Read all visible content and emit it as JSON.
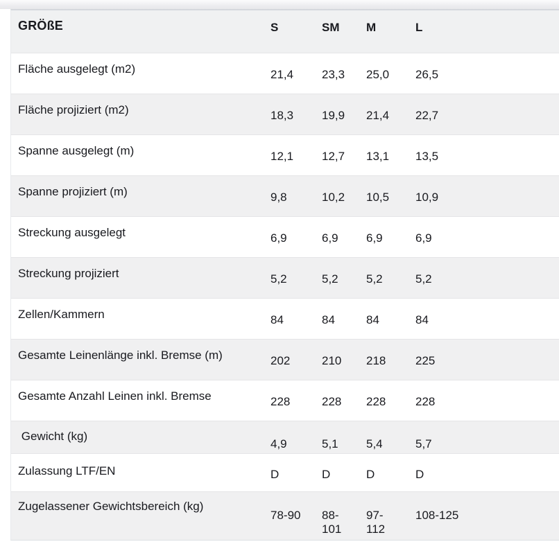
{
  "table": {
    "header": {
      "label": "GRÖßE",
      "sizes": [
        "S",
        "SM",
        "M",
        "L"
      ]
    },
    "rows": [
      {
        "label": "Fläche ausgelegt (m2)",
        "values": [
          "21,4",
          "23,3",
          "25,0",
          "26,5"
        ]
      },
      {
        "label": "Fläche projiziert (m2)",
        "values": [
          "18,3",
          "19,9",
          "21,4",
          "22,7"
        ]
      },
      {
        "label": "Spanne ausgelegt (m)",
        "values": [
          "12,1",
          "12,7",
          "13,1",
          "13,5"
        ]
      },
      {
        "label": "Spanne projiziert (m)",
        "values": [
          "9,8",
          "10,2",
          "10,5",
          "10,9"
        ]
      },
      {
        "label": "Streckung ausgelegt",
        "values": [
          "6,9",
          "6,9",
          "6,9",
          "6,9"
        ]
      },
      {
        "label": "Streckung projiziert",
        "values": [
          "5,2",
          "5,2",
          "5,2",
          "5,2"
        ]
      },
      {
        "label": "Zellen/Kammern",
        "values": [
          "84",
          "84",
          "84",
          "84"
        ]
      },
      {
        "label": "Gesamte Leinenlänge inkl. Bremse (m)",
        "values": [
          "202",
          "210",
          "218",
          "225"
        ]
      },
      {
        "label": "Gesamte Anzahl Leinen inkl. Bremse",
        "values": [
          "228",
          "228",
          "228",
          "228"
        ]
      },
      {
        "label": " Gewicht (kg)",
        "values": [
          "4,9",
          "5,1",
          "5,4",
          "5,7"
        ]
      },
      {
        "label": "Zulassung LTF/EN",
        "values": [
          "D",
          "D",
          "D",
          "D"
        ]
      },
      {
        "label": "Zugelassener Gewichtsbereich (kg)",
        "values": [
          "78-90",
          "88-\n101",
          "97-\n112",
          "108-125"
        ]
      }
    ],
    "colors": {
      "text": "#191a1f",
      "row_alt_bg": "#f0f0f1",
      "header_bg": "#f0f1f2",
      "divider": "#e5e5e7",
      "table_top_border": "#d5d8dd"
    }
  }
}
